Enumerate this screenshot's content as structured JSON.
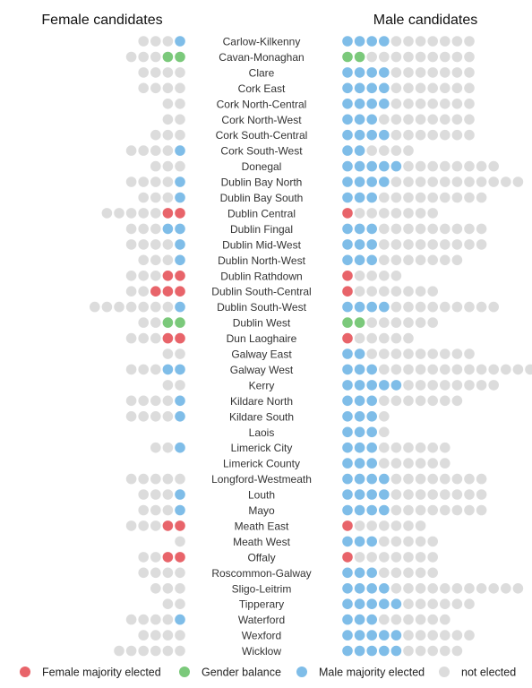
{
  "chart_data": {
    "type": "dot-matrix",
    "panels": {
      "female": {
        "title": "Female candidates"
      },
      "male": {
        "title": "Male candidates"
      }
    },
    "status_keys": [
      "F",
      "G",
      "M",
      "N"
    ],
    "colors": {
      "F": "#e8646a",
      "G": "#7bc97b",
      "M": "#7fbde8",
      "N": "#dcdcdc"
    },
    "legend": [
      {
        "key": "F",
        "label": "Female majority elected"
      },
      {
        "key": "G",
        "label": "Gender balance"
      },
      {
        "key": "M",
        "label": "Male majority elected"
      },
      {
        "key": "N",
        "label": "not elected"
      }
    ],
    "constituencies": [
      {
        "name": "Carlow-Kilkenny",
        "female": "NNNM",
        "male": "MMMMNNNNNNN"
      },
      {
        "name": "Cavan-Monaghan",
        "female": "NNNGG",
        "male": "GGNNNNNNNNN"
      },
      {
        "name": "Clare",
        "female": "NNNN",
        "male": "MMMMNNNNNNN"
      },
      {
        "name": "Cork East",
        "female": "NNNN",
        "male": "MMMMNNNNNNN"
      },
      {
        "name": "Cork North-Central",
        "female": "NN",
        "male": "MMMMNNNNNNN"
      },
      {
        "name": "Cork North-West",
        "female": "NN",
        "male": "MMMNNNNNNNN"
      },
      {
        "name": "Cork South-Central",
        "female": "NNN",
        "male": "MMMMNNNNNNN"
      },
      {
        "name": "Cork South-West",
        "female": "NNNNM",
        "male": "MMNNNN"
      },
      {
        "name": "Donegal",
        "female": "NNN",
        "male": "MMMMMNNNNNNNN"
      },
      {
        "name": "Dublin Bay North",
        "female": "NNNNM",
        "male": "MMMMNNNNNNNNNNN"
      },
      {
        "name": "Dublin Bay South",
        "female": "NNNM",
        "male": "MMMNNNNNNNNN"
      },
      {
        "name": "Dublin Central",
        "female": "NNNNNFF",
        "male": "FNNNNNNN"
      },
      {
        "name": "Dublin Fingal",
        "female": "NNNMM",
        "male": "MMMNNNNNNNNN"
      },
      {
        "name": "Dublin Mid-West",
        "female": "NNNNM",
        "male": "MMMNNNNNNNNN"
      },
      {
        "name": "Dublin North-West",
        "female": "NNNM",
        "male": "MMMNNNNNNN"
      },
      {
        "name": "Dublin Rathdown",
        "female": "NNNFF",
        "male": "FNNNN"
      },
      {
        "name": "Dublin South-Central",
        "female": "NNFFF",
        "male": "FNNNNNNN"
      },
      {
        "name": "Dublin South-West",
        "female": "NNNNNNNM",
        "male": "MMMMNNNNNNNNN"
      },
      {
        "name": "Dublin West",
        "female": "NNGG",
        "male": "GGNNNNNN"
      },
      {
        "name": "Dun Laoghaire",
        "female": "NNNFF",
        "male": "FNNNNN"
      },
      {
        "name": "Galway East",
        "female": "NN",
        "male": "MMNNNNNNNNN"
      },
      {
        "name": "Galway West",
        "female": "NNNMM",
        "male": "MMMNNNNNNNNNNNNN"
      },
      {
        "name": "Kerry",
        "female": "NN",
        "male": "MMMMMNNNNNNNN"
      },
      {
        "name": "Kildare North",
        "female": "NNNNM",
        "male": "MMMNNNNNNN"
      },
      {
        "name": "Kildare South",
        "female": "NNNNM",
        "male": "MMMN"
      },
      {
        "name": "Laois",
        "female": "",
        "male": "MMMN"
      },
      {
        "name": "Limerick City",
        "female": "NNM",
        "male": "MMMNNNNNN"
      },
      {
        "name": "Limerick County",
        "female": "",
        "male": "MMMNNNNNN"
      },
      {
        "name": "Longford-Westmeath",
        "female": "NNNNN",
        "male": "MMMMNNNNNNNN"
      },
      {
        "name": "Louth",
        "female": "NNNM",
        "male": "MMMMNNNNNNNN"
      },
      {
        "name": "Mayo",
        "female": "NNNM",
        "male": "MMMMNNNNNNNN"
      },
      {
        "name": "Meath East",
        "female": "NNNFF",
        "male": "FNNNNNN"
      },
      {
        "name": "Meath West",
        "female": "N",
        "male": "MMMNNNNN"
      },
      {
        "name": "Offaly",
        "female": "NNFF",
        "male": "FNNNNNNN"
      },
      {
        "name": "Roscommon-Galway",
        "female": "NNNN",
        "male": "MMMNNNNN"
      },
      {
        "name": "Sligo-Leitrim",
        "female": "NNN",
        "male": "MMMMNNNNNNNNNNN"
      },
      {
        "name": "Tipperary",
        "female": "NN",
        "male": "MMMMMNNNNNN"
      },
      {
        "name": "Waterford",
        "female": "NNNNM",
        "male": "MMMNNNNNN"
      },
      {
        "name": "Wexford",
        "female": "NNNN",
        "male": "MMMMMNNNNNN"
      },
      {
        "name": "Wicklow",
        "female": "NNNNNN",
        "male": "MMMMMNNNNN"
      }
    ]
  }
}
